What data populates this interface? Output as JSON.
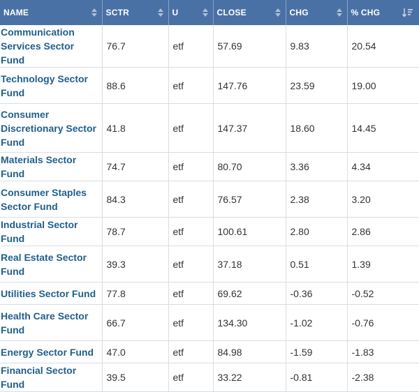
{
  "headers": {
    "name": "NAME",
    "sctr": "SCTR",
    "u": "U",
    "close": "CLOSE",
    "chg": "CHG",
    "pct_chg": "% CHG"
  },
  "colors": {
    "header_bg": "#4a71a6",
    "link": "#1f5f8b"
  },
  "rows": [
    {
      "name": "Communication Services Sector Fund",
      "sctr": "76.7",
      "u": "etf",
      "close": "57.69",
      "chg": "9.83",
      "pct_chg": "20.54"
    },
    {
      "name": "Technology Sector Fund",
      "sctr": "88.6",
      "u": "etf",
      "close": "147.76",
      "chg": "23.59",
      "pct_chg": "19.00"
    },
    {
      "name": "Consumer Discretionary Sector Fund",
      "sctr": "41.8",
      "u": "etf",
      "close": "147.37",
      "chg": "18.60",
      "pct_chg": "14.45"
    },
    {
      "name": "Materials Sector Fund",
      "sctr": "74.7",
      "u": "etf",
      "close": "80.70",
      "chg": "3.36",
      "pct_chg": "4.34"
    },
    {
      "name": "Consumer Staples Sector Fund",
      "sctr": "84.3",
      "u": "etf",
      "close": "76.57",
      "chg": "2.38",
      "pct_chg": "3.20"
    },
    {
      "name": "Industrial Sector Fund",
      "sctr": "78.7",
      "u": "etf",
      "close": "100.61",
      "chg": "2.80",
      "pct_chg": "2.86"
    },
    {
      "name": "Real Estate Sector Fund",
      "sctr": "39.3",
      "u": "etf",
      "close": "37.18",
      "chg": "0.51",
      "pct_chg": "1.39"
    },
    {
      "name": "Utilities Sector Fund",
      "sctr": "77.8",
      "u": "etf",
      "close": "69.62",
      "chg": "-0.36",
      "pct_chg": "-0.52"
    },
    {
      "name": "Health Care Sector Fund",
      "sctr": "66.7",
      "u": "etf",
      "close": "134.30",
      "chg": "-1.02",
      "pct_chg": "-0.76"
    },
    {
      "name": "Energy Sector Fund",
      "sctr": "47.0",
      "u": "etf",
      "close": "84.98",
      "chg": "-1.59",
      "pct_chg": "-1.83"
    },
    {
      "name": "Financial Sector Fund",
      "sctr": "39.5",
      "u": "etf",
      "close": "33.22",
      "chg": "-0.81",
      "pct_chg": "-2.38"
    }
  ]
}
